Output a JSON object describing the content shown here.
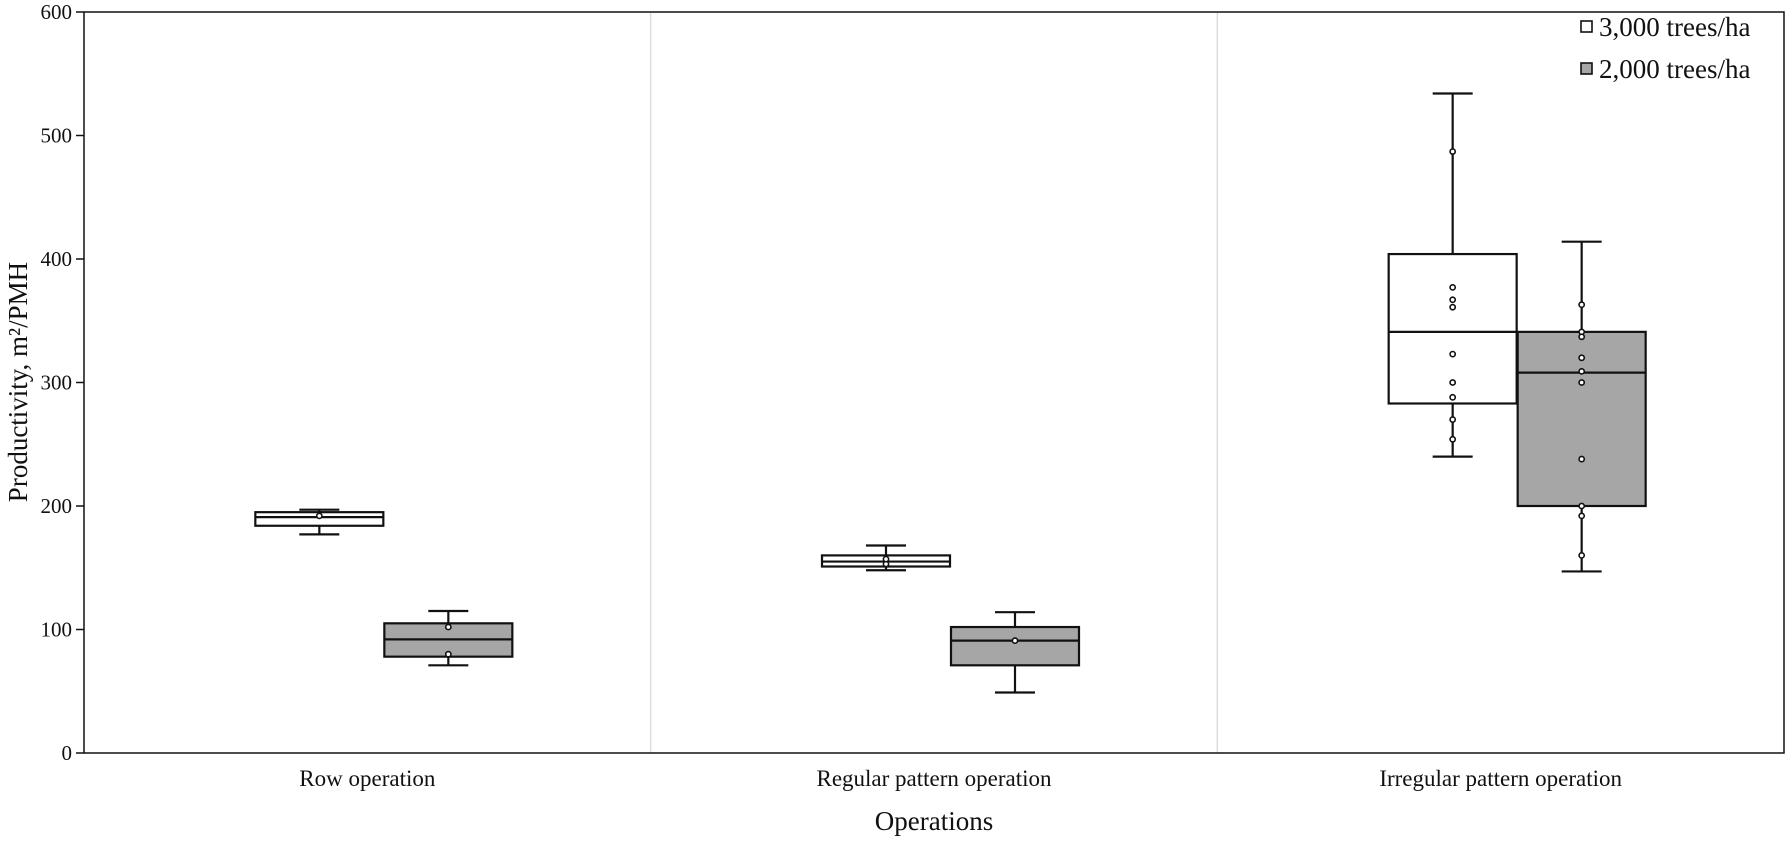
{
  "chart_data": {
    "type": "box",
    "title": "",
    "xlabel": "Operations",
    "ylabel": "Productivity, m²/PMH",
    "ylim": [
      0,
      600
    ],
    "yticks": [
      "0",
      "100",
      "200",
      "300",
      "400",
      "500",
      "600"
    ],
    "grid": false,
    "legend_position": "top-right",
    "colors": {
      "3,000 trees/ha": "#ffffff",
      "2,000 trees/ha": "#a6a6a6",
      "stroke": "#111111",
      "divider": "#dddddd"
    },
    "categories": [
      "Row operation",
      "Regular pattern operation",
      "Irregular pattern operation"
    ],
    "series": [
      {
        "name": "3,000 trees/ha",
        "boxes": [
          {
            "min": 177,
            "q1": 184,
            "median": 191,
            "q3": 195,
            "max": 197,
            "points": [
              192
            ]
          },
          {
            "min": 148,
            "q1": 151,
            "median": 155,
            "q3": 160,
            "max": 168,
            "points": [
              153,
              157
            ]
          },
          {
            "min": 240,
            "q1": 283,
            "median": 341,
            "q3": 404,
            "max": 534,
            "points": [
              487,
              377,
              367,
              361,
              323,
              300,
              288,
              270,
              254
            ]
          }
        ]
      },
      {
        "name": "2,000 trees/ha",
        "boxes": [
          {
            "min": 71,
            "q1": 78,
            "median": 92,
            "q3": 105,
            "max": 115,
            "points": [
              102,
              80
            ]
          },
          {
            "min": 49,
            "q1": 71,
            "median": 91,
            "q3": 102,
            "max": 114,
            "points": [
              91
            ]
          },
          {
            "min": 147,
            "q1": 200,
            "median": 308,
            "q3": 341,
            "max": 414,
            "points": [
              363,
              341,
              337,
              320,
              309,
              300,
              238,
              200,
              192,
              160
            ]
          }
        ]
      }
    ]
  }
}
